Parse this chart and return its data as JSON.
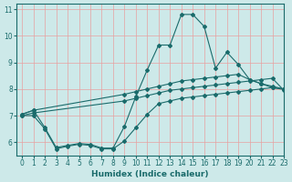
{
  "xlabel": "Humidex (Indice chaleur)",
  "xlim": [
    -0.5,
    23
  ],
  "ylim": [
    5.5,
    11.2
  ],
  "yticks": [
    6,
    7,
    8,
    9,
    10,
    11
  ],
  "xticks": [
    0,
    1,
    2,
    3,
    4,
    5,
    6,
    7,
    8,
    9,
    10,
    11,
    12,
    13,
    14,
    15,
    16,
    17,
    18,
    19,
    20,
    21,
    22,
    23
  ],
  "bg_color": "#cde9e9",
  "line_color": "#1a6b6b",
  "grid_color": "#e8a0a0",
  "line_top_x": [
    0,
    1,
    9,
    10,
    11,
    12,
    13,
    14,
    15,
    16,
    17,
    18,
    19,
    20,
    21,
    22,
    23
  ],
  "line_top_y": [
    7.05,
    7.2,
    7.8,
    7.9,
    8.0,
    8.1,
    8.2,
    8.3,
    8.35,
    8.4,
    8.45,
    8.5,
    8.55,
    8.35,
    8.2,
    8.05,
    8.0
  ],
  "line_mid_x": [
    0,
    1,
    9,
    10,
    11,
    12,
    13,
    14,
    15,
    16,
    17,
    18,
    19,
    20,
    21,
    22,
    23
  ],
  "line_mid_y": [
    7.0,
    7.1,
    7.55,
    7.65,
    7.75,
    7.85,
    7.95,
    8.0,
    8.05,
    8.1,
    8.15,
    8.2,
    8.25,
    8.3,
    8.35,
    8.4,
    7.95
  ],
  "line_peak_x": [
    0,
    1,
    2,
    3,
    4,
    5,
    6,
    7,
    8,
    9,
    10,
    11,
    12,
    13,
    14,
    15,
    16,
    17,
    18,
    19,
    20,
    21,
    22,
    23
  ],
  "line_peak_y": [
    7.05,
    7.2,
    6.55,
    5.8,
    5.88,
    5.95,
    5.92,
    5.78,
    5.78,
    6.6,
    7.72,
    8.72,
    9.65,
    9.65,
    10.8,
    10.8,
    10.35,
    8.78,
    9.38,
    8.92,
    8.35,
    8.2,
    8.1,
    8.0
  ],
  "line_low_x": [
    0,
    1,
    2,
    3,
    4,
    5,
    6,
    7,
    8,
    9,
    10,
    11,
    12,
    13,
    14,
    15,
    16,
    17,
    18,
    19,
    20,
    21,
    22,
    23
  ],
  "line_low_y": [
    7.0,
    7.0,
    6.5,
    5.75,
    5.85,
    5.92,
    5.88,
    5.75,
    5.75,
    6.05,
    6.55,
    7.05,
    7.45,
    7.55,
    7.65,
    7.7,
    7.75,
    7.8,
    7.85,
    7.9,
    7.95,
    8.0,
    8.05,
    7.98
  ]
}
